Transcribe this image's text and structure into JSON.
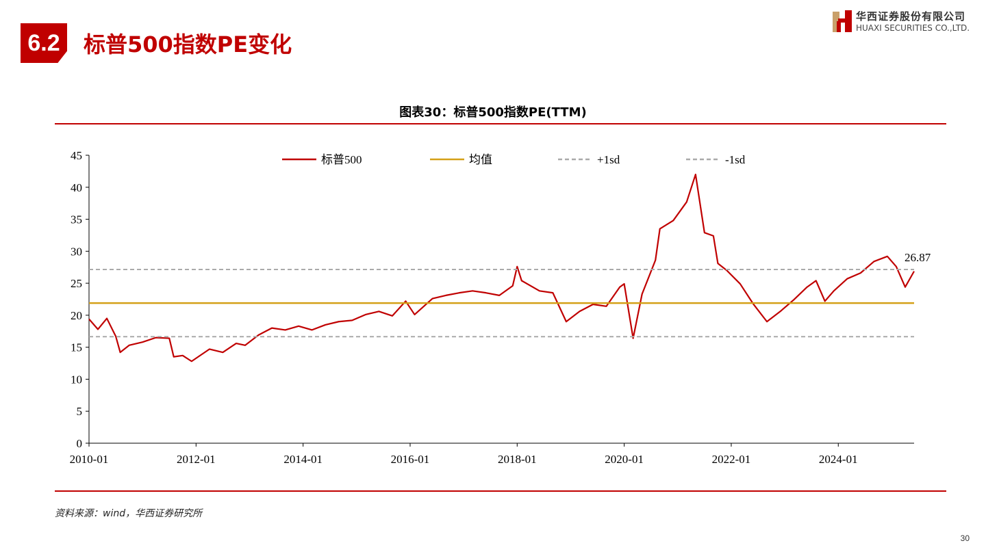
{
  "header": {
    "section_number": "6.2",
    "section_title": "标普500指数PE变化",
    "logo": {
      "cn": "华西证券股份有限公司",
      "en": "HUAXI SECURITIES CO.,LTD."
    }
  },
  "chart_title": "图表30：标普500指数PE(TTM)",
  "source": "资料来源：wind，华西证券研究所",
  "page_number": "30",
  "chart_data": {
    "type": "line",
    "ylim": [
      0,
      45
    ],
    "yticks": [
      0,
      5,
      10,
      15,
      20,
      25,
      30,
      35,
      40,
      45
    ],
    "xlim": [
      "2010-01",
      "2025-06"
    ],
    "xticks": [
      "2010-01",
      "2012-01",
      "2014-01",
      "2016-01",
      "2018-01",
      "2020-01",
      "2022-01",
      "2024-01"
    ],
    "legend_position": "top",
    "grid": false,
    "last_label": "26.87",
    "series": [
      {
        "name": "标普500",
        "color": "#c00000",
        "style": "solid",
        "points": [
          [
            "2010-01",
            19.4
          ],
          [
            "2010-03",
            17.8
          ],
          [
            "2010-05",
            19.5
          ],
          [
            "2010-07",
            16.7
          ],
          [
            "2010-08",
            14.2
          ],
          [
            "2010-10",
            15.3
          ],
          [
            "2011-01",
            15.8
          ],
          [
            "2011-04",
            16.5
          ],
          [
            "2011-07",
            16.4
          ],
          [
            "2011-08",
            13.5
          ],
          [
            "2011-10",
            13.7
          ],
          [
            "2011-12",
            12.8
          ],
          [
            "2012-04",
            14.7
          ],
          [
            "2012-07",
            14.2
          ],
          [
            "2012-10",
            15.6
          ],
          [
            "2012-12",
            15.3
          ],
          [
            "2013-03",
            16.9
          ],
          [
            "2013-06",
            18.0
          ],
          [
            "2013-09",
            17.7
          ],
          [
            "2013-12",
            18.3
          ],
          [
            "2014-03",
            17.7
          ],
          [
            "2014-06",
            18.5
          ],
          [
            "2014-09",
            19.0
          ],
          [
            "2014-12",
            19.2
          ],
          [
            "2015-03",
            20.1
          ],
          [
            "2015-06",
            20.6
          ],
          [
            "2015-09",
            19.9
          ],
          [
            "2015-12",
            22.2
          ],
          [
            "2016-02",
            20.1
          ],
          [
            "2016-06",
            22.6
          ],
          [
            "2016-09",
            23.1
          ],
          [
            "2016-12",
            23.5
          ],
          [
            "2017-03",
            23.8
          ],
          [
            "2017-06",
            23.5
          ],
          [
            "2017-09",
            23.1
          ],
          [
            "2017-12",
            24.6
          ],
          [
            "2018-01",
            27.6
          ],
          [
            "2018-02",
            25.4
          ],
          [
            "2018-06",
            23.8
          ],
          [
            "2018-09",
            23.5
          ],
          [
            "2018-12",
            19.0
          ],
          [
            "2019-03",
            20.6
          ],
          [
            "2019-06",
            21.7
          ],
          [
            "2019-09",
            21.4
          ],
          [
            "2019-12",
            24.4
          ],
          [
            "2020-01",
            24.9
          ],
          [
            "2020-03",
            16.4
          ],
          [
            "2020-05",
            23.3
          ],
          [
            "2020-08",
            28.6
          ],
          [
            "2020-09",
            33.5
          ],
          [
            "2020-12",
            34.8
          ],
          [
            "2021-03",
            37.7
          ],
          [
            "2021-05",
            42.0
          ],
          [
            "2021-07",
            32.9
          ],
          [
            "2021-09",
            32.4
          ],
          [
            "2021-10",
            28.1
          ],
          [
            "2021-12",
            27.0
          ],
          [
            "2022-03",
            24.9
          ],
          [
            "2022-06",
            21.7
          ],
          [
            "2022-09",
            19.0
          ],
          [
            "2022-12",
            20.6
          ],
          [
            "2023-03",
            22.4
          ],
          [
            "2023-06",
            24.4
          ],
          [
            "2023-08",
            25.4
          ],
          [
            "2023-10",
            22.2
          ],
          [
            "2023-12",
            23.8
          ],
          [
            "2024-03",
            25.7
          ],
          [
            "2024-06",
            26.6
          ],
          [
            "2024-09",
            28.4
          ],
          [
            "2024-12",
            29.2
          ],
          [
            "2025-02",
            27.6
          ],
          [
            "2025-04",
            24.4
          ],
          [
            "2025-06",
            26.87
          ]
        ]
      },
      {
        "name": "均值",
        "color": "#d4a017",
        "style": "solid",
        "value": 21.9
      },
      {
        "name": "+1sd",
        "color": "#aaaaaa",
        "style": "dashed",
        "value": 27.15
      },
      {
        "name": "-1sd",
        "color": "#aaaaaa",
        "style": "dashed",
        "value": 16.65
      }
    ]
  }
}
